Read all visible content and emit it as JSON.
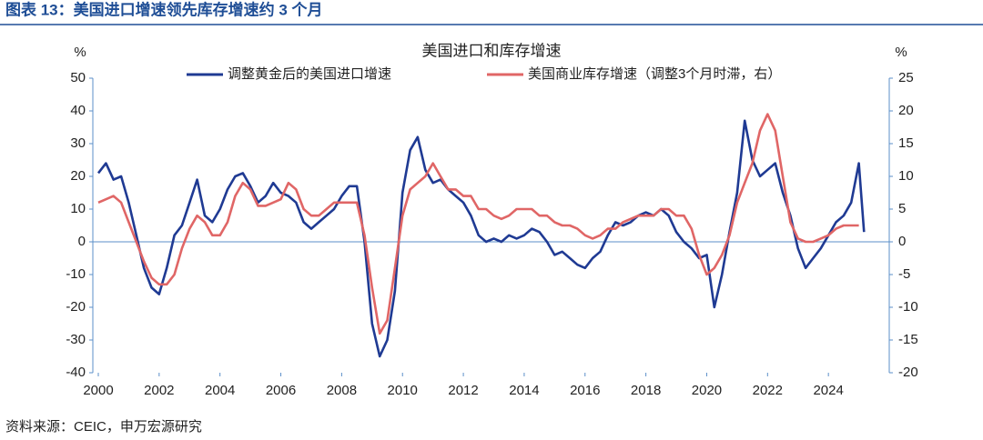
{
  "header": "图表 13：美国进口增速领先库存增速约 3 个月",
  "source": "资料来源：CEIC，申万宏源研究",
  "chart_data": {
    "type": "line",
    "title": "美国进口和库存增速",
    "y_label": "%",
    "y2_label": "%",
    "xlim": [
      2000,
      2026
    ],
    "xticks": [
      2000,
      2002,
      2004,
      2006,
      2008,
      2010,
      2012,
      2014,
      2016,
      2018,
      2020,
      2022,
      2024
    ],
    "ylim": [
      -40,
      50
    ],
    "yticks": [
      50,
      40,
      30,
      20,
      10,
      0,
      -10,
      -20,
      -30,
      -40
    ],
    "y2lim": [
      -20,
      25
    ],
    "y2ticks": [
      25,
      20,
      15,
      10,
      5,
      0,
      -5,
      -10,
      -15,
      -20
    ],
    "series": [
      {
        "name": "调整黄金后的美国进口增速",
        "color": "#1f3a93",
        "axis": "y",
        "x": [
          2000,
          2000.25,
          2000.5,
          2000.75,
          2001,
          2001.25,
          2001.5,
          2001.75,
          2002,
          2002.25,
          2002.5,
          2002.75,
          2003,
          2003.25,
          2003.5,
          2003.75,
          2004,
          2004.25,
          2004.5,
          2004.75,
          2005,
          2005.25,
          2005.5,
          2005.75,
          2006,
          2006.25,
          2006.5,
          2006.75,
          2007,
          2007.25,
          2007.5,
          2007.75,
          2008,
          2008.25,
          2008.5,
          2008.75,
          2009,
          2009.25,
          2009.5,
          2009.75,
          2010,
          2010.25,
          2010.5,
          2010.75,
          2011,
          2011.25,
          2011.5,
          2011.75,
          2012,
          2012.25,
          2012.5,
          2012.75,
          2013,
          2013.25,
          2013.5,
          2013.75,
          2014,
          2014.25,
          2014.5,
          2014.75,
          2015,
          2015.25,
          2015.5,
          2015.75,
          2016,
          2016.25,
          2016.5,
          2016.75,
          2017,
          2017.25,
          2017.5,
          2017.75,
          2018,
          2018.25,
          2018.5,
          2018.75,
          2019,
          2019.25,
          2019.5,
          2019.75,
          2020,
          2020.25,
          2020.5,
          2020.75,
          2021,
          2021.25,
          2021.5,
          2021.75,
          2022,
          2022.25,
          2022.5,
          2022.75,
          2023,
          2023.25,
          2023.5,
          2023.75,
          2024,
          2024.25,
          2024.5,
          2024.75,
          2025,
          2025.17
        ],
        "values": [
          21,
          24,
          19,
          20,
          12,
          2,
          -8,
          -14,
          -16,
          -8,
          2,
          5,
          12,
          19,
          8,
          6,
          10,
          16,
          20,
          21,
          17,
          12,
          14,
          18,
          15,
          14,
          12,
          6,
          4,
          6,
          8,
          10,
          14,
          17,
          17,
          0,
          -25,
          -35,
          -30,
          -15,
          15,
          28,
          32,
          22,
          18,
          19,
          16,
          14,
          12,
          8,
          2,
          0,
          1,
          0,
          2,
          1,
          2,
          4,
          3,
          0,
          -4,
          -3,
          -5,
          -7,
          -8,
          -5,
          -3,
          2,
          6,
          5,
          6,
          8,
          9,
          8,
          10,
          8,
          3,
          0,
          -2,
          -5,
          -4,
          -20,
          -10,
          3,
          15,
          37,
          25,
          20,
          22,
          24,
          15,
          8,
          -2,
          -8,
          -5,
          -2,
          2,
          6,
          8,
          12,
          24,
          3
        ]
      },
      {
        "name": "美国商业库存增速（调整3个月时滞，右）",
        "color": "#e06666",
        "axis": "y2",
        "x": [
          2000,
          2000.25,
          2000.5,
          2000.75,
          2001,
          2001.25,
          2001.5,
          2001.75,
          2002,
          2002.25,
          2002.5,
          2002.75,
          2003,
          2003.25,
          2003.5,
          2003.75,
          2004,
          2004.25,
          2004.5,
          2004.75,
          2005,
          2005.25,
          2005.5,
          2005.75,
          2006,
          2006.25,
          2006.5,
          2006.75,
          2007,
          2007.25,
          2007.5,
          2007.75,
          2008,
          2008.25,
          2008.5,
          2008.75,
          2009,
          2009.25,
          2009.5,
          2009.75,
          2010,
          2010.25,
          2010.5,
          2010.75,
          2011,
          2011.25,
          2011.5,
          2011.75,
          2012,
          2012.25,
          2012.5,
          2012.75,
          2013,
          2013.25,
          2013.5,
          2013.75,
          2014,
          2014.25,
          2014.5,
          2014.75,
          2015,
          2015.25,
          2015.5,
          2015.75,
          2016,
          2016.25,
          2016.5,
          2016.75,
          2017,
          2017.25,
          2017.5,
          2017.75,
          2018,
          2018.25,
          2018.5,
          2018.75,
          2019,
          2019.25,
          2019.5,
          2019.75,
          2020,
          2020.25,
          2020.5,
          2020.75,
          2021,
          2021.25,
          2021.5,
          2021.75,
          2022,
          2022.25,
          2022.5,
          2022.75,
          2023,
          2023.25,
          2023.5,
          2023.75,
          2024,
          2024.25,
          2024.5,
          2024.75,
          2025
        ],
        "values": [
          6,
          6.5,
          7,
          6,
          3,
          0,
          -3,
          -5.5,
          -6.5,
          -6.5,
          -5,
          -1,
          2,
          4,
          3,
          1,
          1,
          3,
          7,
          9,
          8,
          5.5,
          5.5,
          6,
          6.5,
          9,
          8,
          5,
          4,
          4,
          5,
          6,
          6,
          6,
          6,
          1,
          -7,
          -14,
          -12,
          -4,
          4,
          8,
          9,
          10,
          12,
          10,
          8,
          8,
          7,
          7,
          5,
          5,
          4,
          3.5,
          4,
          5,
          5,
          5,
          4,
          4,
          3,
          2.5,
          2.5,
          2,
          1,
          0.5,
          1,
          2,
          2,
          3,
          3.5,
          4,
          4,
          4,
          5,
          5,
          4,
          4,
          2,
          -2,
          -5,
          -4,
          -2,
          1,
          6,
          9,
          12,
          17,
          19.5,
          17,
          10,
          3,
          0.5,
          0,
          0,
          0.5,
          1,
          2,
          2.5,
          2.5,
          2.5
        ]
      }
    ]
  }
}
